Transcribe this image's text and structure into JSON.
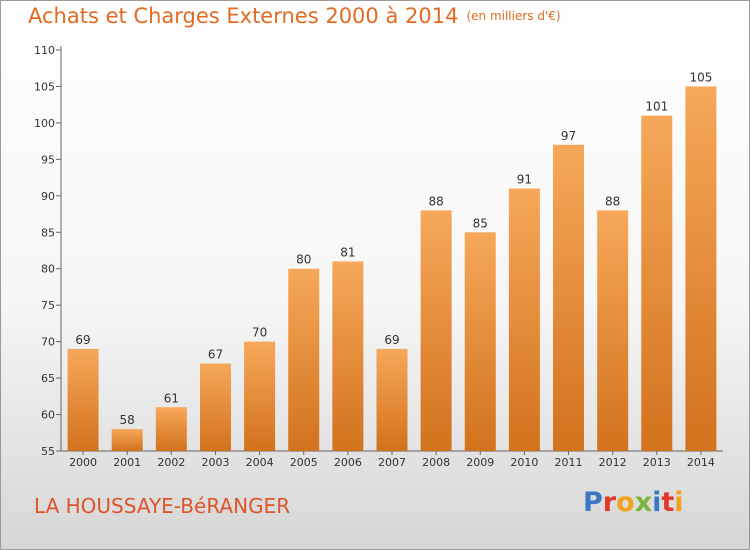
{
  "title": "Achats et Charges Externes 2000 à 2014",
  "unit": "(en milliers d'€)",
  "commune": "LA HOUSSAYE-BéRANGER",
  "logo": "Proxiti",
  "colors": {
    "bar_top": "#f6a85a",
    "bar_bottom": "#d2721c",
    "title": "#e06b21",
    "commune": "#e0542a"
  },
  "chart_data": {
    "type": "bar",
    "title": "Achats et Charges Externes 2000 à 2014",
    "subtitle": "(en milliers d'€)",
    "xlabel": "",
    "ylabel": "",
    "categories": [
      "2000",
      "2001",
      "2002",
      "2003",
      "2004",
      "2005",
      "2006",
      "2007",
      "2008",
      "2009",
      "2010",
      "2011",
      "2012",
      "2013",
      "2014"
    ],
    "values": [
      69,
      58,
      61,
      67,
      70,
      80,
      81,
      69,
      88,
      85,
      91,
      97,
      88,
      101,
      105
    ],
    "ylim": [
      55,
      110
    ],
    "yticks": [
      55,
      60,
      65,
      70,
      75,
      80,
      85,
      90,
      95,
      100,
      105,
      110
    ],
    "grid": false,
    "legend": "none"
  }
}
